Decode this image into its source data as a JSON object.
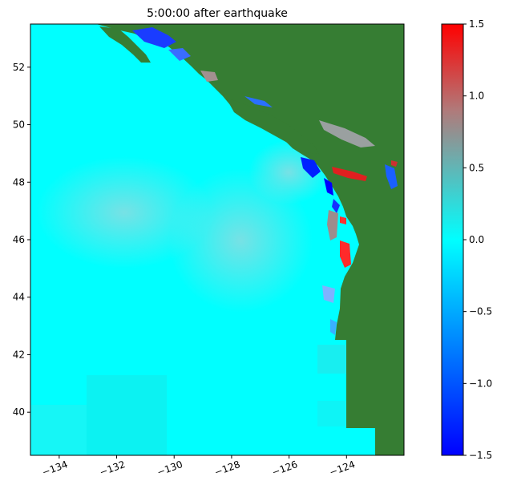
{
  "map": {
    "title": "5:00:00 after earthquake",
    "region": "Pacific Northwest coast of North America",
    "extent": {
      "lon": [
        -135.0,
        -122.0
      ],
      "lat": [
        38.5,
        53.5
      ]
    },
    "x_ticks": [
      {
        "value": -134,
        "label": "−134"
      },
      {
        "value": -132,
        "label": "−132"
      },
      {
        "value": -130,
        "label": "−130"
      },
      {
        "value": -128,
        "label": "−128"
      },
      {
        "value": -126,
        "label": "−126"
      },
      {
        "value": -124,
        "label": "−124"
      }
    ],
    "y_ticks": [
      {
        "value": 40,
        "label": "40"
      },
      {
        "value": 42,
        "label": "42"
      },
      {
        "value": 44,
        "label": "44"
      },
      {
        "value": 46,
        "label": "46"
      },
      {
        "value": 48,
        "label": "48"
      },
      {
        "value": 50,
        "label": "50"
      },
      {
        "value": 52,
        "label": "52"
      }
    ],
    "land_color": "#367d33",
    "ocean_color": "#00ffff"
  },
  "colorbar": {
    "range": [
      -1.5,
      1.5
    ],
    "colors": [
      "#0000ff",
      "#00ffff",
      "#ff0000"
    ],
    "ticks": [
      {
        "value": 1.5,
        "label": "1.5"
      },
      {
        "value": 1.0,
        "label": "1.0"
      },
      {
        "value": 0.5,
        "label": "0.5"
      },
      {
        "value": 0.0,
        "label": "0.0"
      },
      {
        "value": -0.5,
        "label": "−0.5"
      },
      {
        "value": -1.0,
        "label": "−1.0"
      },
      {
        "value": -1.5,
        "label": "−1.5"
      }
    ]
  }
}
